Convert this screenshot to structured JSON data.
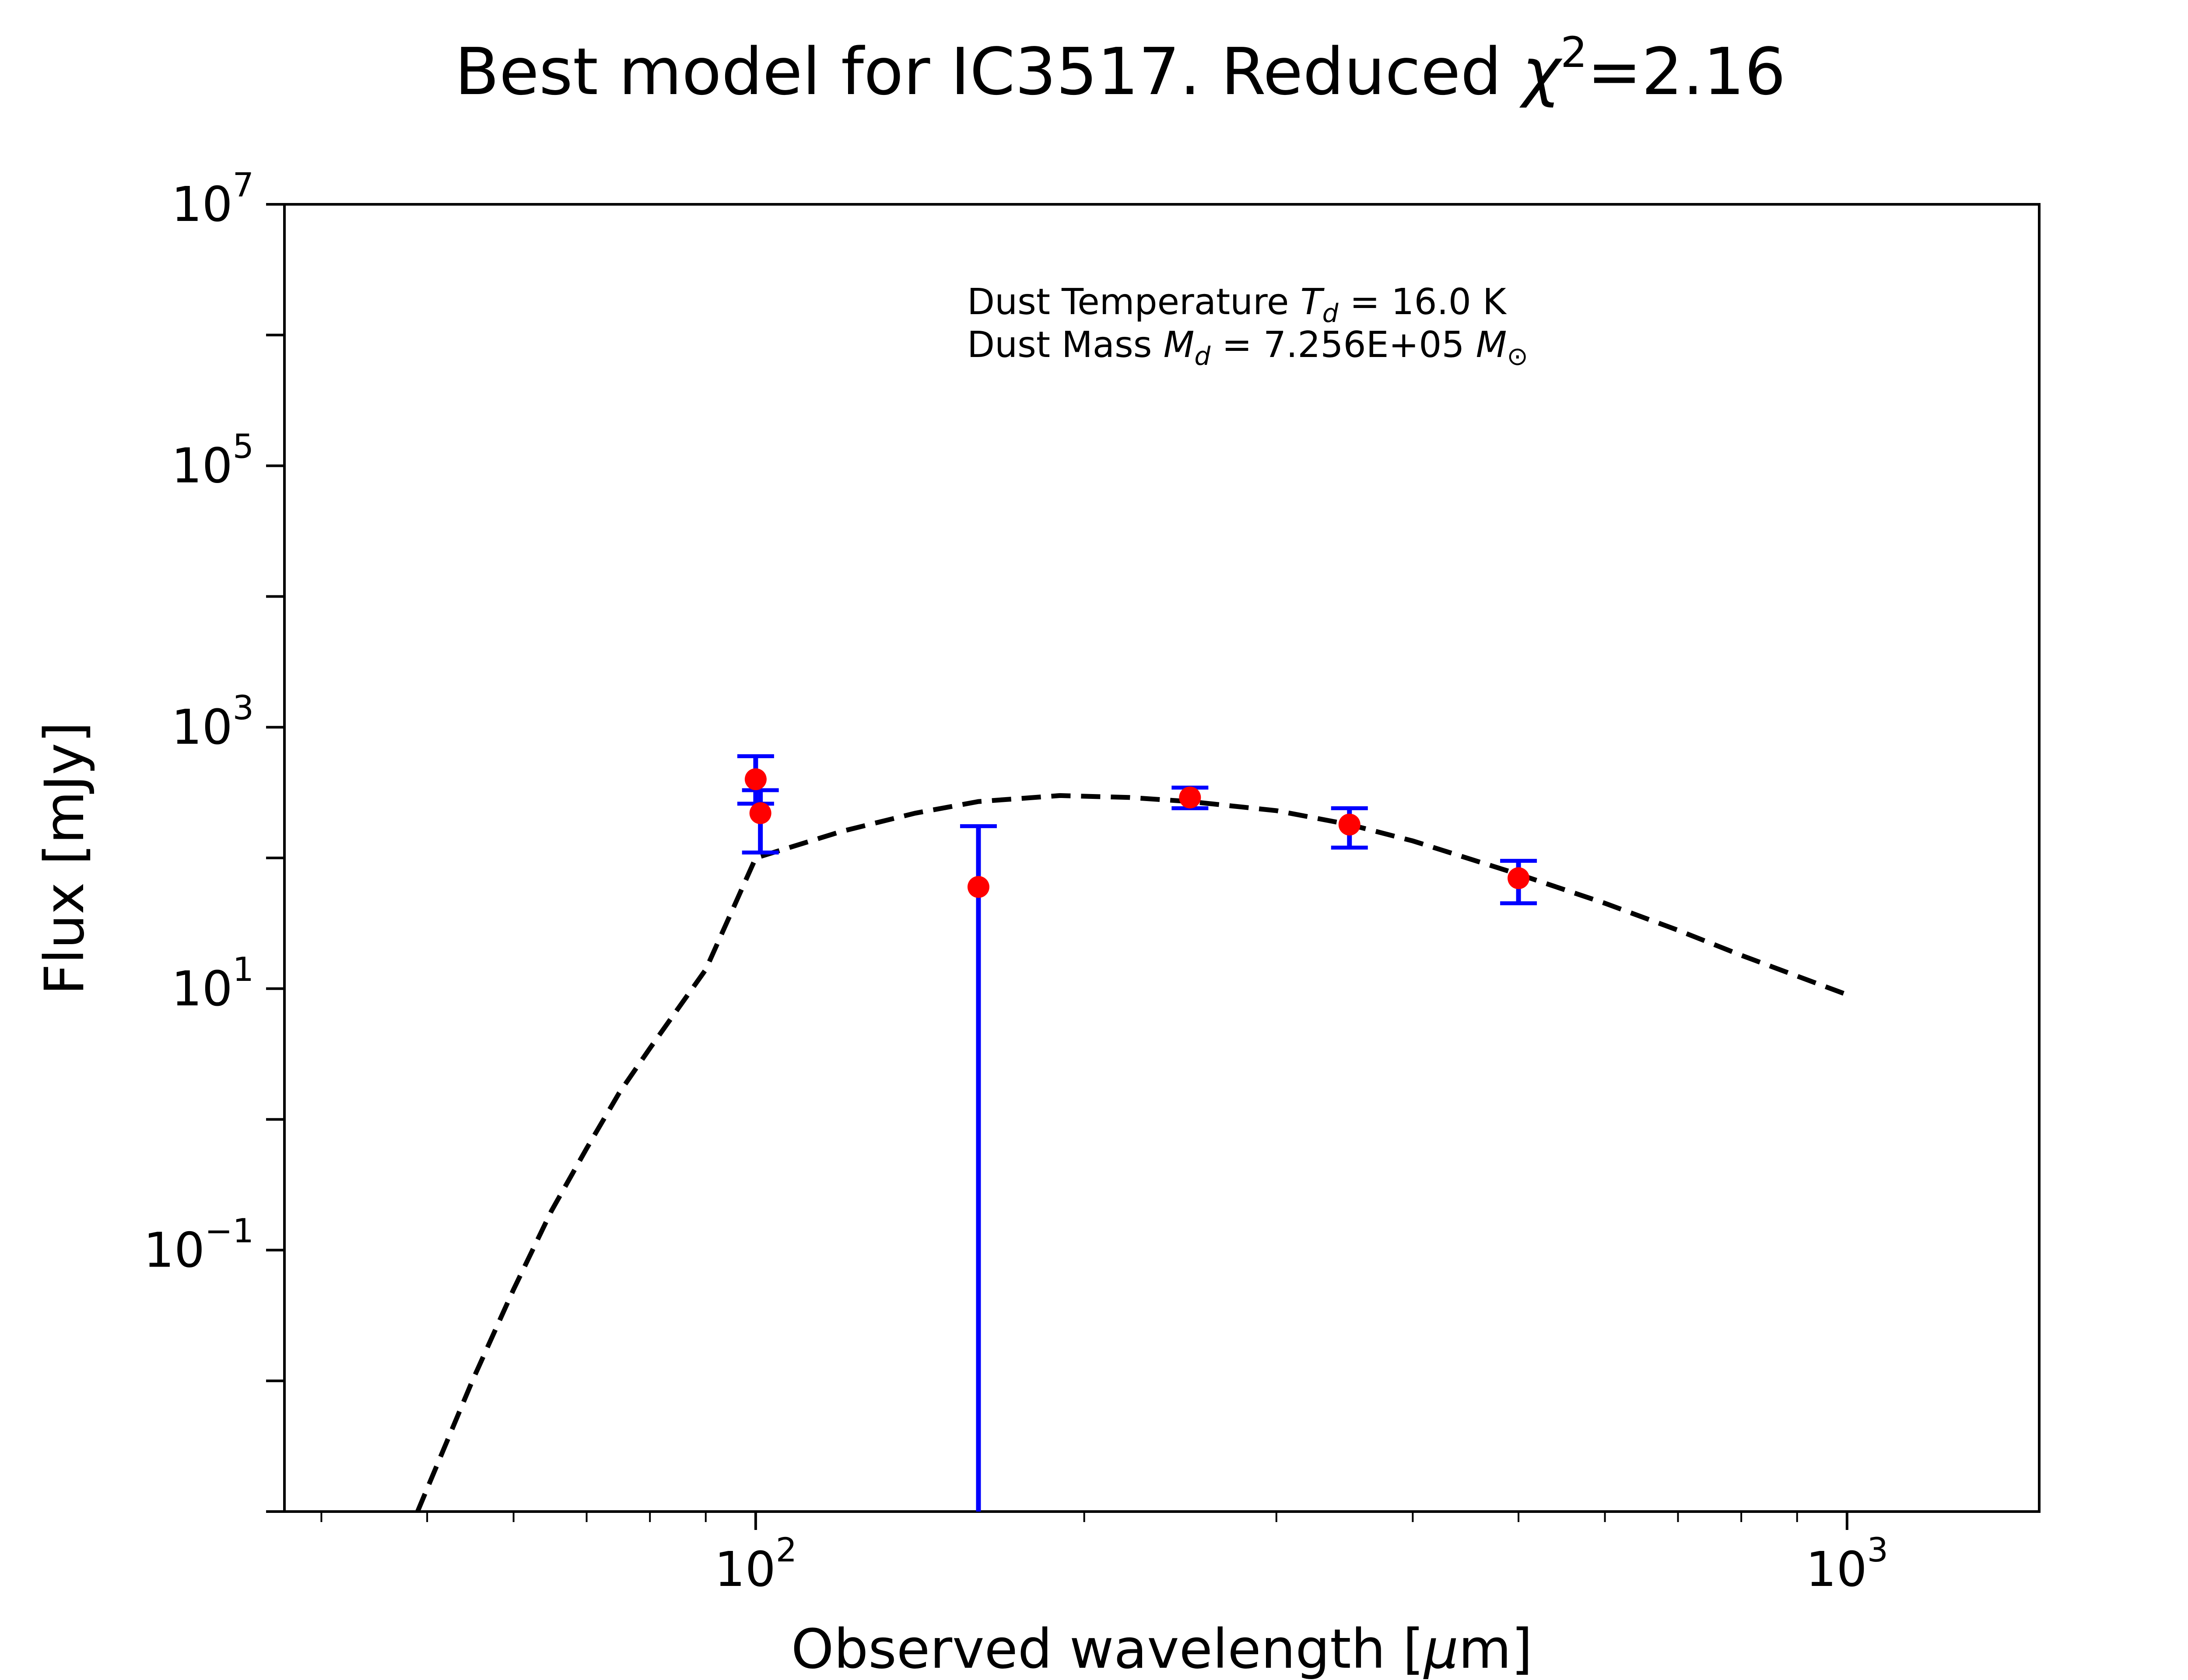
{
  "chart_data": {
    "type": "scatter",
    "title": {
      "main": "Best model for IC3517. Reduced ",
      "chi": "χ",
      "chi_exp": "2",
      "value": "=2.16"
    },
    "xlabel": {
      "main": "Observed wavelength [",
      "mu": "μ",
      "unit": "m]"
    },
    "ylabel": "Flux [mJy]",
    "x_scale": "log",
    "y_scale": "log",
    "xlim": [
      37,
      1500
    ],
    "ylim": [
      0.001,
      10000000
    ],
    "x_ticks": [
      {
        "value": 100,
        "base": "10",
        "exp": "2"
      },
      {
        "value": 1000,
        "base": "10",
        "exp": "3"
      }
    ],
    "y_ticks": [
      {
        "value": 0.1,
        "base": "10",
        "exp": "−1"
      },
      {
        "value": 10,
        "base": "10",
        "exp": "1"
      },
      {
        "value": 1000,
        "base": "10",
        "exp": "3"
      },
      {
        "value": 100000,
        "base": "10",
        "exp": "5"
      },
      {
        "value": 10000000,
        "base": "10",
        "exp": "7"
      }
    ],
    "grid": false,
    "annotation": {
      "line1_prefix": "Dust Temperature ",
      "line1_var": "T",
      "line1_sub": "d",
      "line1_value": " = 16.0 K",
      "line2_prefix": "Dust Mass ",
      "line2_var": "M",
      "line2_sub": "d",
      "line2_value": " = 7.256E+05 ",
      "line2_unit": "M",
      "line2_unit_sub": "⊙"
    },
    "observations": [
      {
        "x": 100,
        "y": 400,
        "yerr_low": 260,
        "yerr_high": 600
      },
      {
        "x": 101,
        "y": 220,
        "yerr_low": 110,
        "yerr_high": 330
      },
      {
        "x": 160,
        "y": 60,
        "yerr_low": 0.001,
        "yerr_high": 175
      },
      {
        "x": 250,
        "y": 290,
        "yerr_low": 240,
        "yerr_high": 345
      },
      {
        "x": 350,
        "y": 180,
        "yerr_low": 120,
        "yerr_high": 240
      },
      {
        "x": 500,
        "y": 70,
        "yerr_low": 45,
        "yerr_high": 95
      }
    ],
    "model": {
      "style": "dashed",
      "x": [
        49,
        55,
        60,
        65,
        70,
        75,
        80,
        90,
        100,
        120,
        140,
        160,
        190,
        220,
        250,
        300,
        350,
        400,
        500,
        600,
        700,
        800,
        1000
      ],
      "y": [
        0.001,
        0.01,
        0.05,
        0.2,
        0.6,
        1.6,
        3.5,
        14,
        100,
        160,
        220,
        270,
        300,
        290,
        270,
        230,
        180,
        135,
        75,
        45,
        28,
        18,
        9
      ]
    },
    "colors": {
      "points": "#ff0000",
      "errorbars": "#0000ff",
      "model": "#000000",
      "frame": "#000000"
    }
  }
}
